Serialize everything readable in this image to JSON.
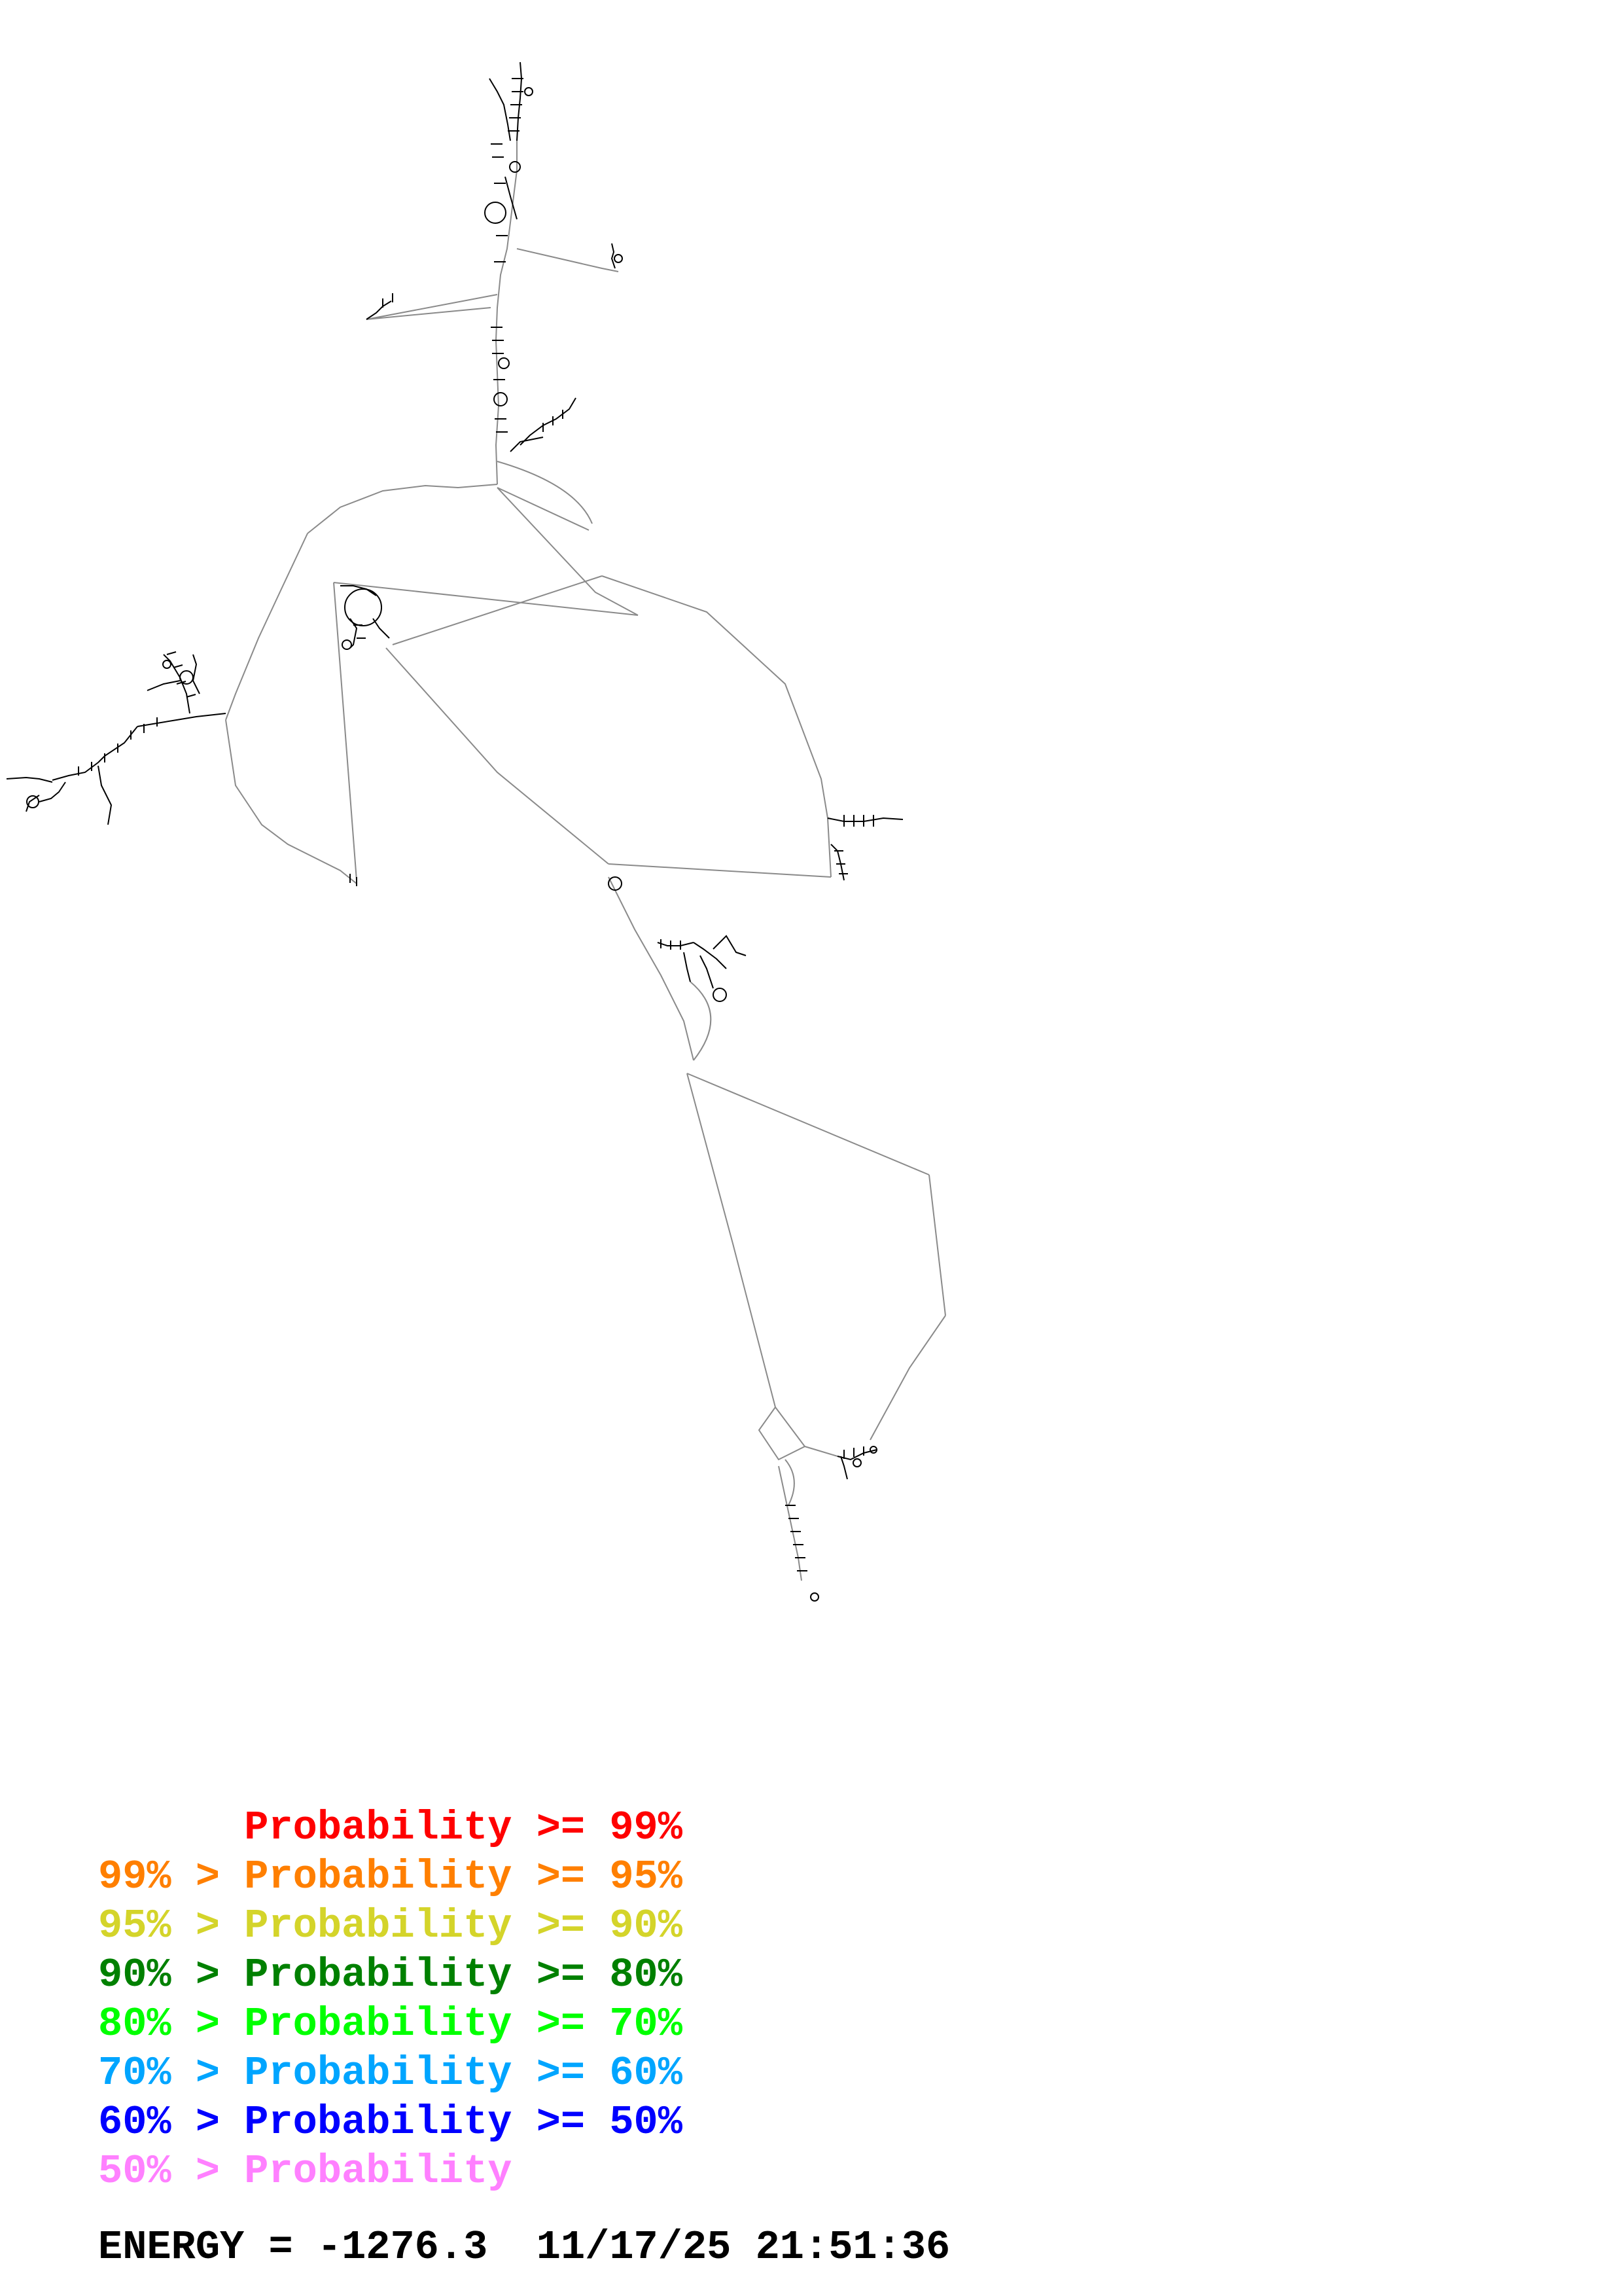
{
  "legend": {
    "items": [
      {
        "text": "      Probability >= 99%",
        "color": "#ff0000"
      },
      {
        "text": "99% > Probability >= 95%",
        "color": "#ff7f00"
      },
      {
        "text": "95% > Probability >= 90%",
        "color": "#d4d42a"
      },
      {
        "text": "90% > Probability >= 80%",
        "color": "#008000"
      },
      {
        "text": "80% > Probability >= 70%",
        "color": "#00ff00"
      },
      {
        "text": "70% > Probability >= 60%",
        "color": "#00a5ff"
      },
      {
        "text": "60% > Probability >= 50%",
        "color": "#0000ff"
      },
      {
        "text": "50% > Probability",
        "color": "#ff80ff"
      }
    ]
  },
  "footer": {
    "energy_label": "ENERGY = ",
    "energy_value": "-1276.3",
    "timestamp": "11/17/25 21:51:36"
  },
  "structure": {
    "line_color": "#000000",
    "backbone_color": "#888888"
  }
}
